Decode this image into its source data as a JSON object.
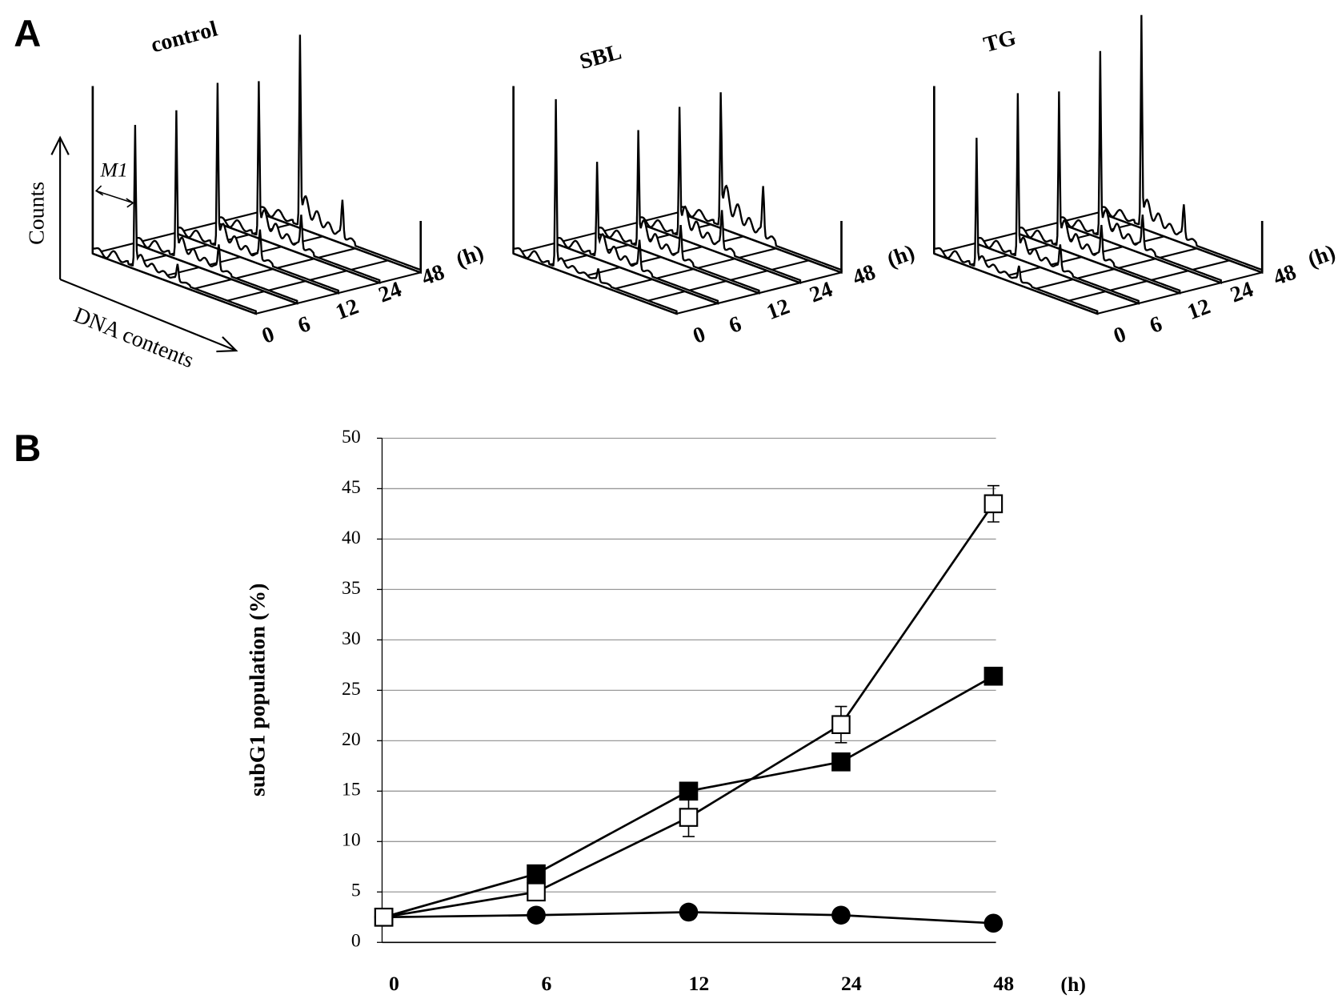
{
  "panel_a": {
    "label": "A",
    "axis_y": "Counts",
    "axis_x": "DNA contents",
    "marker": "M1",
    "panels": [
      "control",
      "SBL",
      "TG"
    ],
    "time_labels": [
      "0",
      "6",
      "12",
      "24",
      "48"
    ],
    "time_unit": "(h)"
  },
  "chart_data": {
    "type": "line",
    "label": "B",
    "ylabel": "subG1 population (%)",
    "categories": [
      "0",
      "6",
      "12",
      "24",
      "48"
    ],
    "x_unit": "(h)",
    "ylim": [
      0,
      50
    ],
    "yticks": [
      0,
      5,
      10,
      15,
      20,
      25,
      30,
      35,
      40,
      45,
      50
    ],
    "grid": true,
    "series": [
      {
        "color": "#000000",
        "marker": "circle",
        "values": [
          2.5,
          2.7,
          3.0,
          2.7,
          1.9
        ]
      },
      {
        "color": "#000000",
        "marker": "square",
        "values": [
          2.5,
          6.8,
          15.0,
          17.9,
          26.4
        ]
      },
      {
        "color": "#000000",
        "marker": "square-open",
        "values": [
          2.5,
          5.0,
          12.4,
          21.6,
          43.5
        ],
        "errors": [
          null,
          0.5,
          1.9,
          1.8,
          1.8
        ]
      }
    ]
  }
}
